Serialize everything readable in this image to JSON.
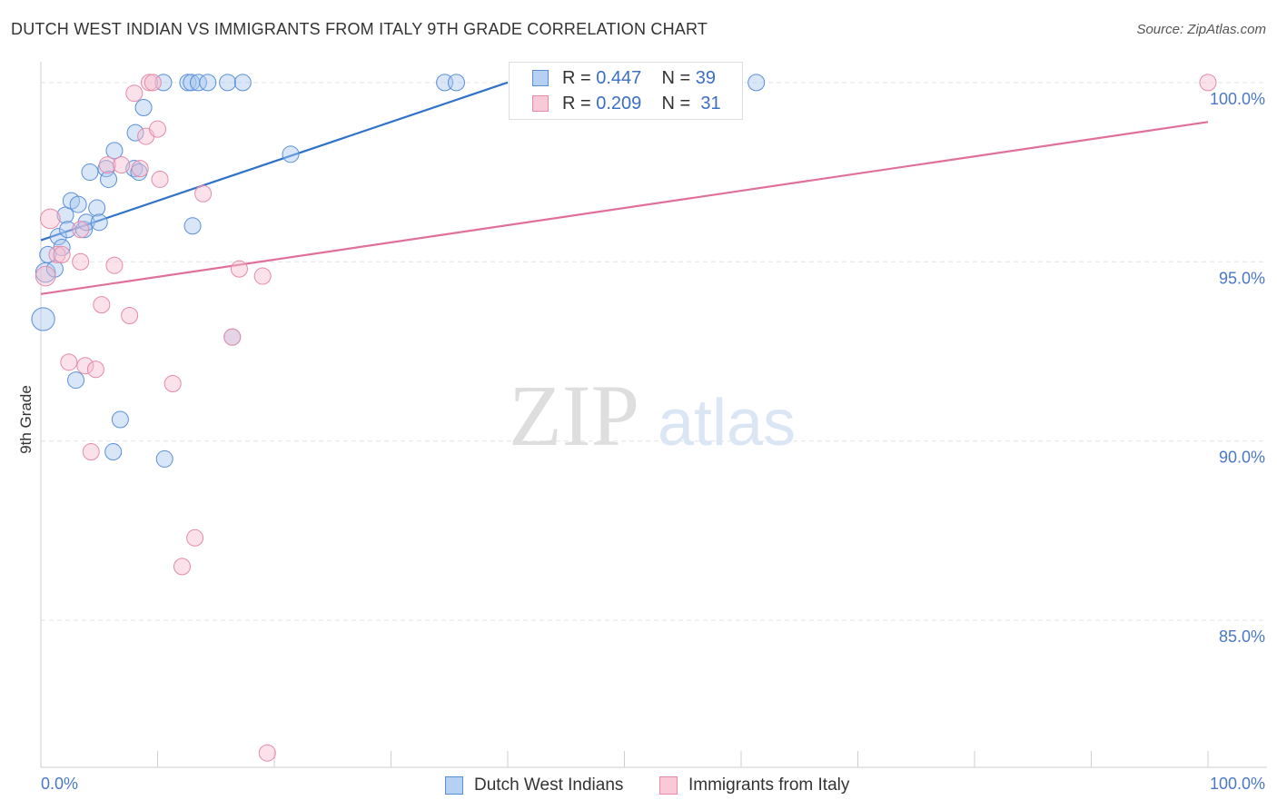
{
  "title": "DUTCH WEST INDIAN VS IMMIGRANTS FROM ITALY 9TH GRADE CORRELATION CHART",
  "source": "Source: ZipAtlas.com",
  "watermark": {
    "zip": "ZIP",
    "atlas": "atlas"
  },
  "colors": {
    "blue_fill": "#a9c8f0",
    "blue_stroke": "#5a8fd8",
    "blue_line": "#2f72c9",
    "pink_fill": "#f7bcd0",
    "pink_stroke": "#e58aa8",
    "pink_line": "#e0709a",
    "grid": "#e3e3e3",
    "axis_text": "#4a78c8"
  },
  "legend": {
    "rows": [
      {
        "r_label": "R = ",
        "r_value": "0.447",
        "n_label": "N = ",
        "n_value": "39"
      },
      {
        "r_label": "R = ",
        "r_value": "0.209",
        "n_label": "N = ",
        "n_value": "31"
      }
    ]
  },
  "bottom_legend": [
    "Dutch West Indians",
    "Immigrants from Italy"
  ],
  "chart_data": {
    "type": "scatter",
    "title": "DUTCH WEST INDIAN VS IMMIGRANTS FROM ITALY 9TH GRADE CORRELATION CHART",
    "xlabel": "",
    "ylabel": "9th Grade",
    "xlim": [
      0,
      100
    ],
    "ylim": [
      80.9,
      100.3
    ],
    "x_tick_labels": [
      "0.0%",
      "100.0%"
    ],
    "y_ticks": [
      85,
      90,
      95,
      100
    ],
    "y_tick_labels": [
      "85.0%",
      "90.0%",
      "95.0%",
      "100.0%"
    ],
    "series": [
      {
        "name": "Dutch West Indians",
        "color": "blue",
        "R": 0.447,
        "N": 39,
        "trend": {
          "x": [
            0,
            40
          ],
          "y": [
            95.6,
            100.0
          ]
        },
        "points": [
          {
            "x": 0.2,
            "y": 93.4,
            "s": 1.4
          },
          {
            "x": 0.4,
            "y": 94.7,
            "s": 1.2
          },
          {
            "x": 0.6,
            "y": 95.2
          },
          {
            "x": 1.2,
            "y": 94.8
          },
          {
            "x": 1.5,
            "y": 95.7
          },
          {
            "x": 1.8,
            "y": 95.4
          },
          {
            "x": 2.1,
            "y": 96.3
          },
          {
            "x": 2.3,
            "y": 95.9
          },
          {
            "x": 2.6,
            "y": 96.7
          },
          {
            "x": 3.2,
            "y": 96.6
          },
          {
            "x": 3.7,
            "y": 95.9
          },
          {
            "x": 3.9,
            "y": 96.1
          },
          {
            "x": 4.2,
            "y": 97.5
          },
          {
            "x": 4.8,
            "y": 96.5
          },
          {
            "x": 5.0,
            "y": 96.1
          },
          {
            "x": 5.6,
            "y": 97.6
          },
          {
            "x": 5.8,
            "y": 97.3
          },
          {
            "x": 6.3,
            "y": 98.1
          },
          {
            "x": 8.0,
            "y": 97.6
          },
          {
            "x": 8.1,
            "y": 98.6
          },
          {
            "x": 8.4,
            "y": 97.5
          },
          {
            "x": 8.8,
            "y": 99.3
          },
          {
            "x": 10.5,
            "y": 100.0
          },
          {
            "x": 12.6,
            "y": 100.0
          },
          {
            "x": 12.9,
            "y": 100.0
          },
          {
            "x": 13.5,
            "y": 100.0
          },
          {
            "x": 14.3,
            "y": 100.0
          },
          {
            "x": 16.0,
            "y": 100.0
          },
          {
            "x": 17.3,
            "y": 100.0
          },
          {
            "x": 13.0,
            "y": 96.0
          },
          {
            "x": 21.4,
            "y": 98.0
          },
          {
            "x": 16.4,
            "y": 92.9
          },
          {
            "x": 3.0,
            "y": 91.7
          },
          {
            "x": 6.8,
            "y": 90.6
          },
          {
            "x": 6.2,
            "y": 89.7
          },
          {
            "x": 10.6,
            "y": 89.5
          },
          {
            "x": 34.6,
            "y": 100.0
          },
          {
            "x": 35.6,
            "y": 100.0
          },
          {
            "x": 61.3,
            "y": 100.0
          }
        ]
      },
      {
        "name": "Immigrants from Italy",
        "color": "pink",
        "R": 0.209,
        "N": 31,
        "trend": {
          "x": [
            0,
            100
          ],
          "y": [
            94.1,
            98.9
          ]
        },
        "points": [
          {
            "x": 0.4,
            "y": 94.6,
            "s": 1.2
          },
          {
            "x": 0.8,
            "y": 96.2,
            "s": 1.2
          },
          {
            "x": 1.4,
            "y": 95.2
          },
          {
            "x": 1.8,
            "y": 95.2
          },
          {
            "x": 2.4,
            "y": 92.2
          },
          {
            "x": 3.4,
            "y": 95.0
          },
          {
            "x": 3.8,
            "y": 92.1
          },
          {
            "x": 4.3,
            "y": 89.7
          },
          {
            "x": 4.7,
            "y": 92.0
          },
          {
            "x": 5.2,
            "y": 93.8
          },
          {
            "x": 5.7,
            "y": 97.7
          },
          {
            "x": 6.3,
            "y": 94.9
          },
          {
            "x": 6.9,
            "y": 97.7
          },
          {
            "x": 7.6,
            "y": 93.5
          },
          {
            "x": 8.0,
            "y": 99.7
          },
          {
            "x": 8.5,
            "y": 97.6
          },
          {
            "x": 9.0,
            "y": 98.5
          },
          {
            "x": 9.3,
            "y": 100.0
          },
          {
            "x": 9.6,
            "y": 100.0
          },
          {
            "x": 10.0,
            "y": 98.7
          },
          {
            "x": 10.2,
            "y": 97.3
          },
          {
            "x": 11.3,
            "y": 91.6
          },
          {
            "x": 12.1,
            "y": 86.5
          },
          {
            "x": 13.2,
            "y": 87.3
          },
          {
            "x": 13.9,
            "y": 96.9
          },
          {
            "x": 16.4,
            "y": 92.9
          },
          {
            "x": 17.0,
            "y": 94.8
          },
          {
            "x": 19.0,
            "y": 94.6
          },
          {
            "x": 19.4,
            "y": 81.3
          },
          {
            "x": 100.0,
            "y": 100.0
          },
          {
            "x": 3.4,
            "y": 95.9
          }
        ]
      }
    ]
  }
}
